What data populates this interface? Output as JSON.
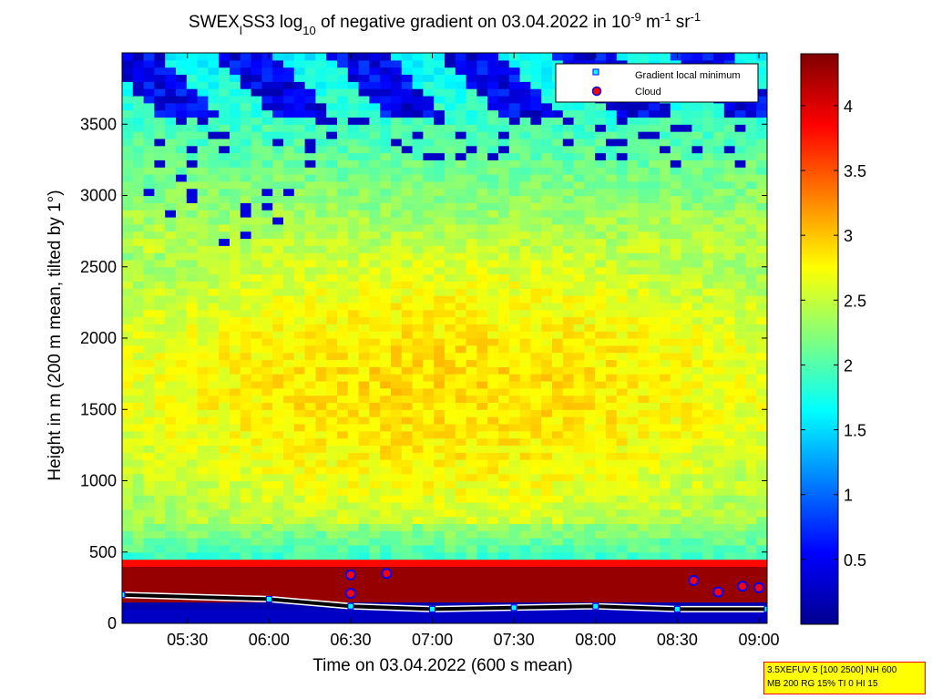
{
  "chart_data": {
    "type": "heatmap",
    "title_parts": {
      "a": "SWEX",
      "a_sub": "l",
      "b": "SS3 log",
      "b_sub": "10",
      "c": " of negative gradient on 03.04.2022 in 10",
      "c_sup": "-9",
      "d": " m",
      "d_sup": "-1",
      "e": " sr",
      "e_sup": "-1"
    },
    "xlabel": "Time on 03.04.2022 (600 s mean)",
    "ylabel": "Height in m (200 m mean, tilted by 1°)",
    "x_ticks": [
      "05:30",
      "06:00",
      "06:30",
      "07:00",
      "07:30",
      "08:00",
      "08:30",
      "09:00"
    ],
    "x_range_hours": [
      5.1,
      9.05
    ],
    "x_tick_hours": [
      5.5,
      6.0,
      6.5,
      7.0,
      7.5,
      8.0,
      8.5,
      9.0
    ],
    "y_ticks": [
      "0",
      "500",
      "1000",
      "1500",
      "2000",
      "2500",
      "3000",
      "3500"
    ],
    "y_tick_values": [
      0,
      500,
      1000,
      1500,
      2000,
      2500,
      3000,
      3500
    ],
    "ylim": [
      0,
      4000
    ],
    "colorbar": {
      "ticks": [
        "0.5",
        "1",
        "1.5",
        "2",
        "2.5",
        "3",
        "3.5",
        "4"
      ],
      "tick_values": [
        0.5,
        1,
        1.5,
        2,
        2.5,
        3,
        3.5,
        4
      ],
      "range": [
        0,
        4.4
      ],
      "colormap": "jet"
    },
    "legend": {
      "position": "top-right",
      "entries": [
        {
          "label": "Gradient local minimum",
          "marker": "square",
          "color": "#00ffff"
        },
        {
          "label": "Cloud",
          "marker": "circle",
          "color": "#ff0000",
          "edge": "#0000ff"
        }
      ]
    },
    "field_summary": {
      "boundary_layer_top_m": 400,
      "gradient_min_height_m": [
        [
          5.1,
          200
        ],
        [
          6.0,
          170
        ],
        [
          6.5,
          120
        ],
        [
          7.0,
          100
        ],
        [
          7.5,
          110
        ],
        [
          8.0,
          120
        ],
        [
          8.5,
          100
        ],
        [
          9.05,
          100
        ]
      ],
      "cloud_points": [
        [
          6.5,
          340
        ],
        [
          6.5,
          210
        ],
        [
          6.72,
          350
        ],
        [
          8.6,
          300
        ],
        [
          8.75,
          220
        ],
        [
          8.9,
          260
        ],
        [
          9.0,
          250
        ]
      ]
    },
    "grid": false
  },
  "info_box": {
    "line1": "3.5XEFUV 5 [100 2500] NH 600",
    "line2": "MB 200 RG 15% TI 0 HI 15"
  }
}
